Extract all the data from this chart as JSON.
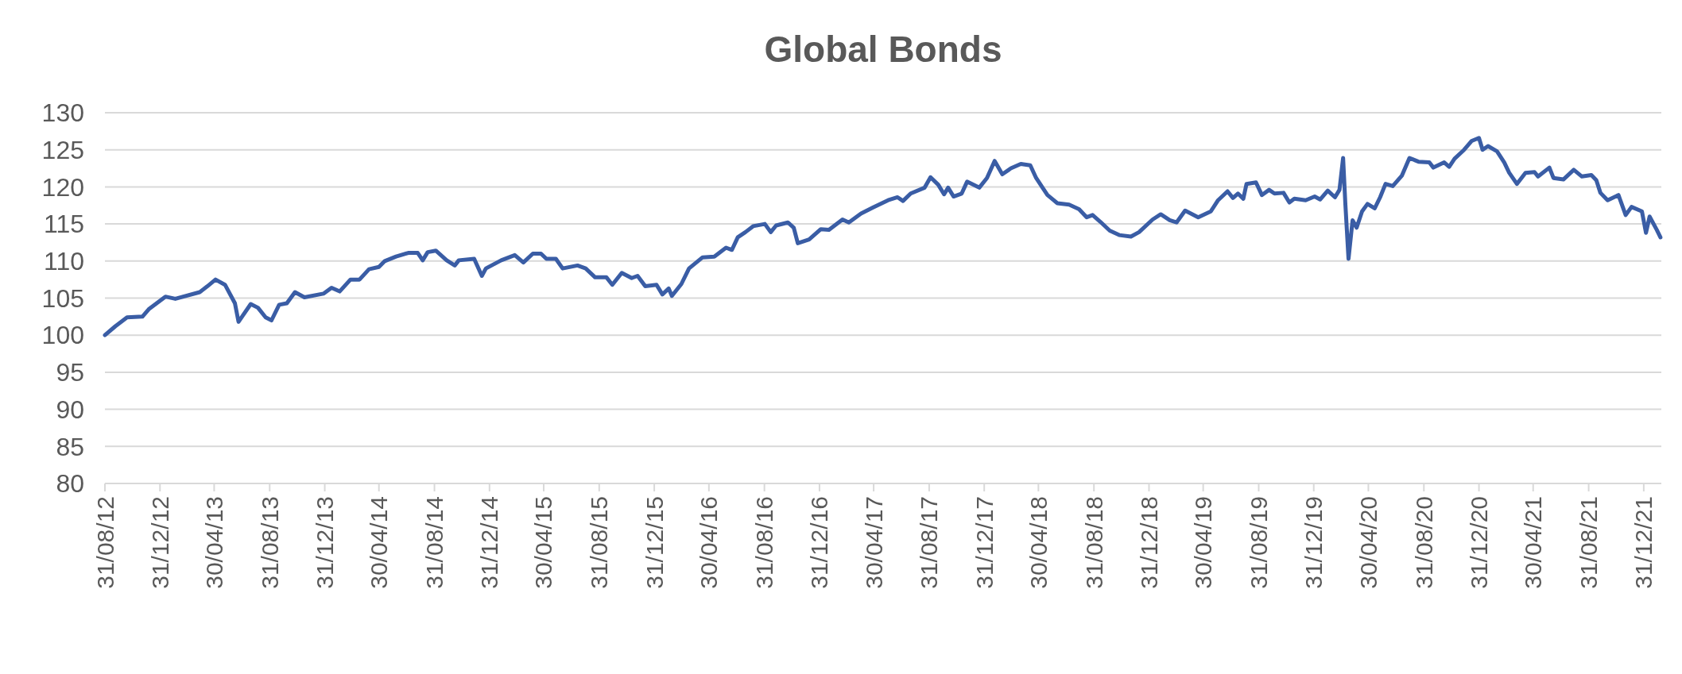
{
  "chart_data": {
    "type": "line",
    "title": "Global Bonds",
    "grid": "y",
    "xlim": [
      "2012-08-31",
      "2022-02-08"
    ],
    "xticks": [
      {
        "value": "2012-08-31",
        "label": "31/08/12"
      },
      {
        "value": "2012-12-31",
        "label": "31/12/12"
      },
      {
        "value": "2013-04-30",
        "label": "30/04/13"
      },
      {
        "value": "2013-08-31",
        "label": "31/08/13"
      },
      {
        "value": "2013-12-31",
        "label": "31/12/13"
      },
      {
        "value": "2014-04-30",
        "label": "30/04/14"
      },
      {
        "value": "2014-08-31",
        "label": "31/08/14"
      },
      {
        "value": "2014-12-31",
        "label": "31/12/14"
      },
      {
        "value": "2015-04-30",
        "label": "30/04/15"
      },
      {
        "value": "2015-08-31",
        "label": "31/08/15"
      },
      {
        "value": "2015-12-31",
        "label": "31/12/15"
      },
      {
        "value": "2016-04-30",
        "label": "30/04/16"
      },
      {
        "value": "2016-08-31",
        "label": "31/08/16"
      },
      {
        "value": "2016-12-31",
        "label": "31/12/16"
      },
      {
        "value": "2017-04-30",
        "label": "30/04/17"
      },
      {
        "value": "2017-08-31",
        "label": "31/08/17"
      },
      {
        "value": "2017-12-31",
        "label": "31/12/17"
      },
      {
        "value": "2018-04-30",
        "label": "30/04/18"
      },
      {
        "value": "2018-08-31",
        "label": "31/08/18"
      },
      {
        "value": "2018-12-31",
        "label": "31/12/18"
      },
      {
        "value": "2019-04-30",
        "label": "30/04/19"
      },
      {
        "value": "2019-08-31",
        "label": "31/08/19"
      },
      {
        "value": "2019-12-31",
        "label": "31/12/19"
      },
      {
        "value": "2020-04-30",
        "label": "30/04/20"
      },
      {
        "value": "2020-08-31",
        "label": "31/08/20"
      },
      {
        "value": "2020-12-31",
        "label": "31/12/20"
      },
      {
        "value": "2021-04-30",
        "label": "30/04/21"
      },
      {
        "value": "2021-08-31",
        "label": "31/08/21"
      },
      {
        "value": "2021-12-31",
        "label": "31/12/21"
      }
    ],
    "ylim": [
      80,
      130
    ],
    "yticks": [
      80,
      85,
      90,
      95,
      100,
      105,
      110,
      115,
      120,
      125,
      130
    ],
    "series": [
      {
        "color": "#3a5da5",
        "x": [
          "2012-08-31",
          "2012-09-23",
          "2012-10-19",
          "2012-11-22",
          "2012-12-06",
          "2013-01-12",
          "2013-02-03",
          "2013-03-29",
          "2013-04-15",
          "2013-05-03",
          "2013-05-24",
          "2013-06-15",
          "2013-06-23",
          "2013-07-02",
          "2013-07-20",
          "2013-08-05",
          "2013-08-22",
          "2013-09-04",
          "2013-09-21",
          "2013-10-08",
          "2013-10-26",
          "2013-11-16",
          "2013-12-28",
          "2014-01-15",
          "2014-02-02",
          "2014-02-26",
          "2014-03-18",
          "2014-04-08",
          "2014-04-30",
          "2014-05-13",
          "2014-06-07",
          "2014-07-04",
          "2014-07-25",
          "2014-08-05",
          "2014-08-16",
          "2014-09-03",
          "2014-09-27",
          "2014-10-15",
          "2014-10-24",
          "2014-11-27",
          "2014-12-14",
          "2014-12-23",
          "2015-01-26",
          "2015-02-25",
          "2015-03-16",
          "2015-04-06",
          "2015-04-24",
          "2015-05-06",
          "2015-05-27",
          "2015-06-11",
          "2015-07-14",
          "2015-08-01",
          "2015-08-22",
          "2015-09-16",
          "2015-09-29",
          "2015-10-20",
          "2015-11-11",
          "2015-11-24",
          "2015-12-11",
          "2016-01-05",
          "2016-01-18",
          "2016-02-01",
          "2016-02-08",
          "2016-02-29",
          "2016-03-17",
          "2016-04-16",
          "2016-05-12",
          "2016-06-07",
          "2016-06-20",
          "2016-07-03",
          "2016-07-20",
          "2016-08-06",
          "2016-09-01",
          "2016-09-14",
          "2016-09-26",
          "2016-10-22",
          "2016-11-04",
          "2016-11-13",
          "2016-12-08",
          "2017-01-03",
          "2017-01-21",
          "2017-02-20",
          "2017-03-06",
          "2017-04-02",
          "2017-04-28",
          "2017-06-01",
          "2017-06-22",
          "2017-07-04",
          "2017-07-21",
          "2017-08-21",
          "2017-09-03",
          "2017-09-20",
          "2017-10-03",
          "2017-10-12",
          "2017-10-24",
          "2017-11-11",
          "2017-11-23",
          "2017-12-20",
          "2018-01-06",
          "2018-01-23",
          "2018-02-09",
          "2018-02-28",
          "2018-03-22",
          "2018-04-12",
          "2018-04-25",
          "2018-05-08",
          "2018-05-20",
          "2018-06-11",
          "2018-07-07",
          "2018-07-29",
          "2018-08-15",
          "2018-08-28",
          "2018-09-14",
          "2018-10-05",
          "2018-10-26",
          "2018-11-21",
          "2018-12-09",
          "2019-01-08",
          "2019-01-26",
          "2019-02-15",
          "2019-03-02",
          "2019-03-21",
          "2019-04-19",
          "2019-05-17",
          "2019-06-02",
          "2019-06-23",
          "2019-07-05",
          "2019-07-16",
          "2019-07-28",
          "2019-08-04",
          "2019-08-25",
          "2019-09-07",
          "2019-09-23",
          "2019-10-05",
          "2019-10-25",
          "2019-11-07",
          "2019-11-18",
          "2019-12-13",
          "2020-01-02",
          "2020-01-14",
          "2020-01-31",
          "2020-02-16",
          "2020-02-26",
          "2020-03-05",
          "2020-03-10",
          "2020-03-17",
          "2020-03-26",
          "2020-04-04",
          "2020-04-16",
          "2020-04-28",
          "2020-05-14",
          "2020-05-26",
          "2020-06-07",
          "2020-06-23",
          "2020-07-13",
          "2020-07-30",
          "2020-08-19",
          "2020-09-12",
          "2020-09-21",
          "2020-10-15",
          "2020-10-26",
          "2020-11-07",
          "2020-11-28",
          "2020-12-15",
          "2020-12-31",
          "2021-01-08",
          "2021-01-20",
          "2021-02-09",
          "2021-02-25",
          "2021-03-08",
          "2021-03-25",
          "2021-04-13",
          "2021-05-03",
          "2021-05-11",
          "2021-06-05",
          "2021-06-14",
          "2021-07-06",
          "2021-07-29",
          "2021-08-16",
          "2021-09-06",
          "2021-09-17",
          "2021-09-26",
          "2021-10-12",
          "2021-11-05",
          "2021-11-21",
          "2021-12-04",
          "2021-12-27",
          "2022-01-05",
          "2022-01-13",
          "2022-01-29",
          "2022-02-06"
        ],
        "values": [
          100.0,
          101.2,
          102.4,
          102.5,
          103.5,
          105.2,
          104.9,
          105.8,
          106.6,
          107.5,
          106.8,
          104.3,
          101.8,
          102.6,
          104.2,
          103.7,
          102.4,
          102.0,
          104.1,
          104.3,
          105.8,
          105.1,
          105.6,
          106.4,
          105.9,
          107.5,
          107.5,
          108.9,
          109.2,
          110.0,
          110.6,
          111.1,
          111.1,
          110.1,
          111.2,
          111.4,
          110.1,
          109.4,
          110.1,
          110.3,
          108.0,
          109.0,
          110.1,
          110.8,
          109.8,
          111.0,
          111.0,
          110.3,
          110.3,
          109.0,
          109.4,
          109.0,
          107.8,
          107.8,
          106.8,
          108.4,
          107.7,
          108.0,
          106.6,
          106.8,
          105.5,
          106.3,
          105.3,
          106.9,
          109.0,
          110.5,
          110.6,
          111.8,
          111.5,
          113.2,
          113.9,
          114.7,
          115.0,
          113.9,
          114.8,
          115.2,
          114.5,
          112.4,
          112.9,
          114.3,
          114.2,
          115.6,
          115.2,
          116.4,
          117.2,
          118.2,
          118.6,
          118.1,
          119.1,
          119.9,
          121.3,
          120.3,
          119.0,
          119.9,
          118.7,
          119.1,
          120.7,
          119.9,
          121.2,
          123.5,
          121.7,
          122.5,
          123.1,
          122.9,
          121.2,
          120.0,
          118.9,
          117.8,
          117.6,
          117.0,
          115.9,
          116.2,
          115.3,
          114.1,
          113.5,
          113.3,
          113.9,
          115.6,
          116.3,
          115.5,
          115.2,
          116.8,
          115.9,
          116.7,
          118.2,
          119.4,
          118.5,
          119.1,
          118.4,
          120.4,
          120.6,
          118.9,
          119.6,
          119.1,
          119.2,
          117.9,
          118.4,
          118.2,
          118.7,
          118.3,
          119.5,
          118.6,
          119.6,
          123.9,
          117.7,
          110.3,
          115.5,
          114.5,
          116.7,
          117.7,
          117.1,
          118.6,
          120.4,
          120.1,
          121.5,
          123.9,
          123.4,
          123.3,
          122.6,
          123.3,
          122.7,
          123.8,
          125.0,
          126.2,
          126.6,
          125.0,
          125.5,
          124.8,
          123.3,
          121.9,
          120.4,
          121.9,
          122.0,
          121.4,
          122.6,
          121.2,
          121.0,
          122.3,
          121.4,
          121.6,
          120.9,
          119.2,
          118.2,
          118.9,
          116.2,
          117.3,
          116.7,
          113.8,
          116.0,
          114.2,
          113.2
        ]
      }
    ]
  }
}
